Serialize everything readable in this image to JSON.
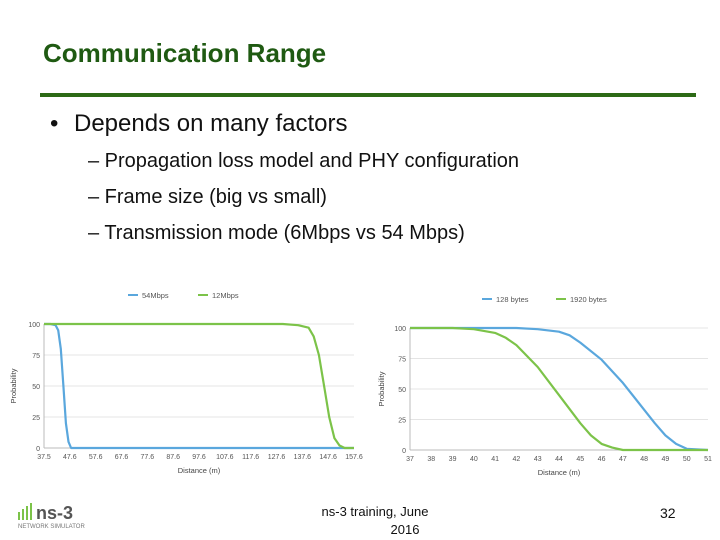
{
  "slide": {
    "title": "Communication Range",
    "bullet": "Depends on many factors",
    "subbullets": [
      "– Propagation loss model and PHY configuration",
      "– Frame size (big vs small)",
      "– Transmission mode (6Mbps vs 54 Mbps)"
    ],
    "footer_line1": "ns-3 training, June",
    "footer_line2": "2016",
    "page_number": "32",
    "logo_text": "ns-3",
    "logo_subtext": "NETWORK SIMULATOR"
  },
  "colors": {
    "title": "#1f5a12",
    "rule": "#2d6a16",
    "blue": "#5aa7dd",
    "green": "#7cc349"
  },
  "chart_data": [
    {
      "type": "line",
      "xlabel": "Distance (m)",
      "ylabel": "Probability",
      "x_ticks": [
        "37.5",
        "47.6",
        "57.6",
        "67.6",
        "77.6",
        "87.6",
        "97.6",
        "107.6",
        "117.6",
        "127.6",
        "137.6",
        "147.6",
        "157.6"
      ],
      "y_ticks": [
        "0",
        "25",
        "50",
        "75",
        "100"
      ],
      "ylim": [
        0,
        100
      ],
      "xlim": [
        37.5,
        157.6
      ],
      "legend_position": "top",
      "series": [
        {
          "name": "54Mbps",
          "color": "#5aa7dd",
          "x": [
            37.5,
            40,
            42,
            43,
            44,
            45,
            46,
            47,
            48,
            50,
            60,
            80,
            100,
            120,
            140,
            157.6
          ],
          "y": [
            100,
            100,
            99,
            95,
            80,
            50,
            20,
            5,
            0,
            0,
            0,
            0,
            0,
            0,
            0,
            0
          ]
        },
        {
          "name": "12Mbps",
          "color": "#7cc349",
          "x": [
            37.5,
            60,
            80,
            100,
            120,
            130,
            136,
            140,
            142,
            144,
            146,
            148,
            150,
            152,
            154,
            157.6
          ],
          "y": [
            100,
            100,
            100,
            100,
            100,
            100,
            99,
            97,
            90,
            75,
            50,
            25,
            8,
            2,
            0,
            0
          ]
        }
      ]
    },
    {
      "type": "line",
      "xlabel": "Distance (m)",
      "ylabel": "Probability",
      "x_ticks": [
        "37",
        "38",
        "39",
        "40",
        "41",
        "42",
        "43",
        "44",
        "45",
        "46",
        "47",
        "48",
        "49",
        "50",
        "51"
      ],
      "y_ticks": [
        "0",
        "25",
        "50",
        "75",
        "100"
      ],
      "ylim": [
        0,
        100
      ],
      "xlim": [
        37,
        51
      ],
      "legend_position": "top",
      "series": [
        {
          "name": "128 bytes",
          "color": "#5aa7dd",
          "x": [
            37,
            40,
            42,
            43,
            44,
            44.5,
            45,
            46,
            47,
            48,
            48.5,
            49,
            49.5,
            50,
            51
          ],
          "y": [
            100,
            100,
            100,
            99,
            97,
            94,
            88,
            74,
            55,
            33,
            22,
            12,
            5,
            1,
            0
          ]
        },
        {
          "name": "1920 bytes",
          "color": "#7cc349",
          "x": [
            37,
            39,
            40,
            41,
            41.5,
            42,
            43,
            44,
            45,
            45.5,
            46,
            46.5,
            47,
            48,
            51
          ],
          "y": [
            100,
            100,
            99,
            96,
            92,
            86,
            68,
            45,
            22,
            12,
            5,
            2,
            0,
            0,
            0
          ]
        }
      ]
    }
  ]
}
